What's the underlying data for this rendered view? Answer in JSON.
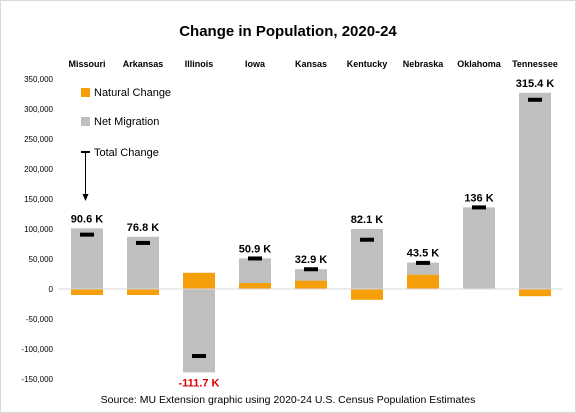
{
  "chart_data": {
    "type": "bar",
    "title": "Change in Population, 2020-24",
    "categories": [
      "Missouri",
      "Arkansas",
      "Illinois",
      "Iowa",
      "Kansas",
      "Kentucky",
      "Nebraska",
      "Oklahoma",
      "Tennessee"
    ],
    "series": [
      {
        "name": "Natural Change",
        "color": "#f5a00a",
        "values": [
          -10000,
          -10000,
          27000,
          10000,
          14000,
          -18000,
          24000,
          1000,
          -12000
        ]
      },
      {
        "name": "Net Migration",
        "color": "#bfbfbf",
        "values": [
          101000,
          87000,
          -139000,
          41000,
          19000,
          100000,
          20000,
          135000,
          327000
        ]
      },
      {
        "name": "Total Change",
        "color": "#000000",
        "values": [
          90600,
          76800,
          -111700,
          50900,
          32900,
          82100,
          43500,
          136000,
          315400
        ]
      }
    ],
    "data_labels": [
      "90.6 K",
      "76.8 K",
      "-111.7 K",
      "50.9 K",
      "32.9 K",
      "82.1 K",
      "43.5 K",
      "136 K",
      "315.4 K"
    ],
    "yticks": [
      "350,000",
      "300,000",
      "250,000",
      "200,000",
      "150,000",
      "100,000",
      "50,000",
      "0",
      "-50,000",
      "-100,000",
      "-150,000"
    ],
    "ytick_values": [
      350000,
      300000,
      250000,
      200000,
      150000,
      100000,
      50000,
      0,
      -50000,
      -100000,
      -150000
    ],
    "ylim": [
      -150000,
      350000
    ],
    "grid": false,
    "legend_position": "top-left",
    "source": "Source: MU Extension graphic using 2020-24 U.S. Census Population Estimates"
  }
}
